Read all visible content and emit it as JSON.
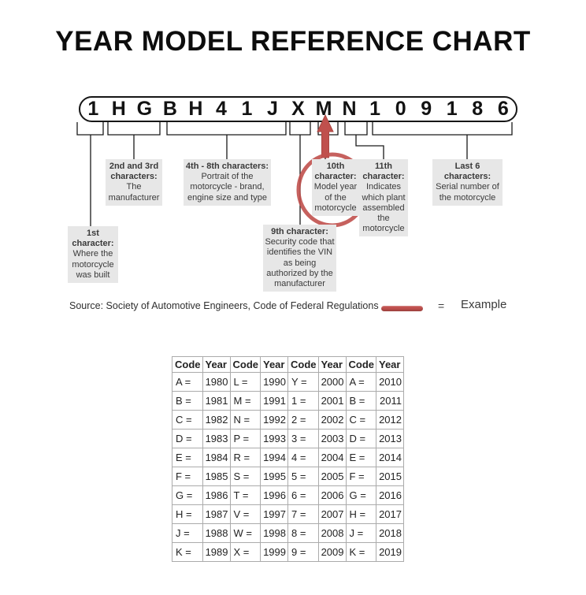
{
  "title": "YEAR MODEL REFERENCE CHART",
  "vin": {
    "characters": [
      "1",
      "H",
      "G",
      "B",
      "H",
      "4",
      "1",
      "J",
      "X",
      "M",
      "N",
      "1",
      "0",
      "9",
      "1",
      "8",
      "6"
    ]
  },
  "callouts": {
    "first": {
      "title": "1st character:",
      "description": "Where the motorcycle was built"
    },
    "second_third": {
      "title": "2nd and 3rd characters:",
      "description": "The manufacturer"
    },
    "fourth_eighth": {
      "title": "4th - 8th characters:",
      "description": "Portrait of the motorcycle - brand, engine size and type"
    },
    "ninth": {
      "title": "9th character:",
      "description": "Security code that identifies the VIN as being authorized by the manufacturer"
    },
    "tenth": {
      "title": "10th character:",
      "description": "Model year of the motorcycle"
    },
    "eleventh": {
      "title": "11th character:",
      "description": "Indicates which plant assembled the motorcycle"
    },
    "last_six": {
      "title": "Last 6 characters:",
      "description": "Serial number of the motorcycle"
    }
  },
  "source_line": "Source:  Society of Automotive Engineers, Code of Federal Regulations",
  "legend": {
    "equals": "=",
    "label": "Example"
  },
  "table": {
    "headers": [
      "Code",
      "Year",
      "Code",
      "Year",
      "Code",
      "Year",
      "Code",
      "Year"
    ],
    "rows": [
      [
        "A =",
        "1980",
        "L =",
        "1990",
        "Y =",
        "2000",
        "A =",
        "2010"
      ],
      [
        "B =",
        "1981",
        "M =",
        "1991",
        "1 =",
        "2001",
        "B =",
        "2011"
      ],
      [
        "C =",
        "1982",
        "N =",
        "1992",
        "2 =",
        "2002",
        "C =",
        "2012"
      ],
      [
        "D =",
        "1983",
        "P =",
        "1993",
        "3 =",
        "2003",
        "D =",
        "2013"
      ],
      [
        "E =",
        "1984",
        "R =",
        "1994",
        "4 =",
        "2004",
        "E =",
        "2014"
      ],
      [
        "F =",
        "1985",
        "S =",
        "1995",
        "5 =",
        "2005",
        "F =",
        "2015"
      ],
      [
        "G =",
        "1986",
        "T =",
        "1996",
        "6 =",
        "2006",
        "G =",
        "2016"
      ],
      [
        "H =",
        "1987",
        "V =",
        "1997",
        "7 =",
        "2007",
        "H =",
        "2017"
      ],
      [
        "J =",
        "1988",
        "W =",
        "1998",
        "8 =",
        "2008",
        "J =",
        "2018"
      ],
      [
        "K =",
        "1989",
        "X =",
        "1999",
        "9 =",
        "2009",
        "K =",
        "2019"
      ]
    ],
    "highlighted_example": "M = 1991"
  },
  "colors": {
    "accent-red": "#c0504d",
    "box-gray": "#e7e7e7",
    "line-black": "#1a1a1a",
    "text-dark": "#3a3a3a",
    "border-gray": "#ababab"
  }
}
